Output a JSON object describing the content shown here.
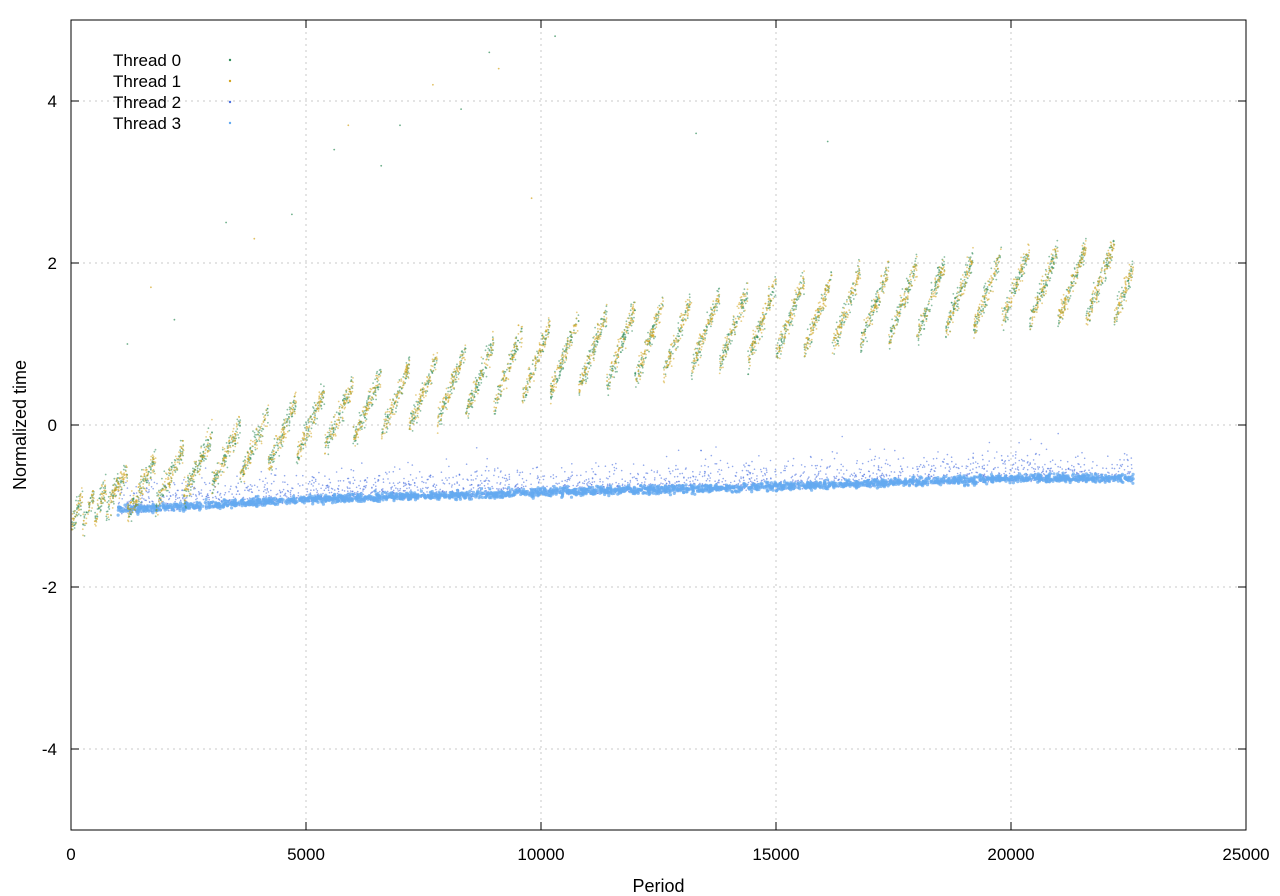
{
  "chart_data": {
    "type": "scatter",
    "title": "",
    "xlabel": "Period",
    "ylabel": "Normalized time",
    "xlim": [
      0,
      25000
    ],
    "ylim": [
      -5,
      5
    ],
    "xticks": [
      0,
      5000,
      10000,
      15000,
      20000,
      25000
    ],
    "yticks": [
      -4,
      -2,
      0,
      2,
      4
    ],
    "grid": true,
    "legend": "top-left",
    "series": [
      {
        "name": "Thread 0",
        "color": "#2e8b57",
        "pattern": "sawtooth",
        "x_range": [
          0,
          22600
        ],
        "y_trend": [
          [
            0,
            -1.1
          ],
          [
            5000,
            0.0
          ],
          [
            10000,
            0.8
          ],
          [
            15000,
            1.3
          ],
          [
            20000,
            1.7
          ],
          [
            22600,
            1.8
          ]
        ],
        "cycle_period": 600,
        "cycle_amplitude": 0.9,
        "outliers": [
          [
            1200,
            1.0
          ],
          [
            2200,
            1.3
          ],
          [
            3300,
            2.5
          ],
          [
            4700,
            2.6
          ],
          [
            5600,
            3.4
          ],
          [
            6600,
            3.2
          ],
          [
            7000,
            3.7
          ],
          [
            8300,
            3.9
          ],
          [
            8900,
            4.6
          ],
          [
            10300,
            4.8
          ],
          [
            13300,
            3.6
          ],
          [
            16100,
            3.5
          ]
        ]
      },
      {
        "name": "Thread 1",
        "color": "#d4a520",
        "pattern": "sawtooth",
        "x_range": [
          0,
          22600
        ],
        "y_trend": [
          [
            0,
            -1.1
          ],
          [
            5000,
            0.0
          ],
          [
            10000,
            0.8
          ],
          [
            15000,
            1.3
          ],
          [
            20000,
            1.7
          ],
          [
            22600,
            1.8
          ]
        ],
        "cycle_period": 600,
        "cycle_amplitude": 0.9,
        "outliers": [
          [
            1700,
            1.7
          ],
          [
            3900,
            2.3
          ],
          [
            5900,
            3.7
          ],
          [
            7700,
            4.2
          ],
          [
            9100,
            4.4
          ],
          [
            9800,
            2.8
          ]
        ]
      },
      {
        "name": "Thread 2",
        "color": "#4a6fe0",
        "pattern": "band",
        "x_range": [
          1000,
          22600
        ],
        "y_trend": [
          [
            1000,
            -1.05
          ],
          [
            5000,
            -0.9
          ],
          [
            10000,
            -0.82
          ],
          [
            15000,
            -0.75
          ],
          [
            20000,
            -0.65
          ],
          [
            22600,
            -0.65
          ]
        ],
        "spread": 0.55
      },
      {
        "name": "Thread 3",
        "color": "#64aaf0",
        "pattern": "band",
        "x_range": [
          1000,
          22600
        ],
        "y_trend": [
          [
            1000,
            -1.05
          ],
          [
            5000,
            -0.92
          ],
          [
            10000,
            -0.83
          ],
          [
            15000,
            -0.76
          ],
          [
            20000,
            -0.66
          ],
          [
            22600,
            -0.66
          ]
        ],
        "spread": 0.1
      }
    ]
  }
}
